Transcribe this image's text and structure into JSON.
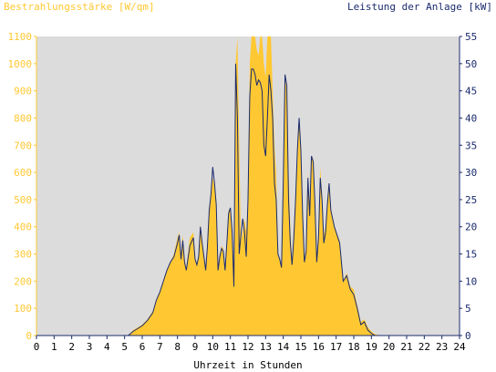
{
  "chart_data": {
    "type": "area",
    "ylabel_left": "Bestrahlungsstärke [W/qm]",
    "ylabel_right": "Leistung der Anlage [kW]",
    "xlabel": "Uhrzeit in Stunden",
    "xlim": [
      0,
      24
    ],
    "ylim_left": [
      0,
      1100
    ],
    "ylim_right": [
      0,
      55
    ],
    "x_ticks": [
      "0",
      "1",
      "2",
      "3",
      "4",
      "5",
      "6",
      "7",
      "8",
      "9",
      "10",
      "11",
      "12",
      "13",
      "14",
      "15",
      "16",
      "17",
      "18",
      "19",
      "20",
      "21",
      "22",
      "23",
      "24"
    ],
    "y_ticks_left": [
      "0",
      "100",
      "200",
      "300",
      "400",
      "500",
      "600",
      "700",
      "800",
      "900",
      "1000",
      "1100"
    ],
    "y_ticks_right": [
      "0",
      "5",
      "10",
      "15",
      "20",
      "25",
      "30",
      "35",
      "40",
      "45",
      "50",
      "55"
    ],
    "grid": false,
    "colors": {
      "background": "#dcdcdc",
      "irradiance_fill": "#ffc832",
      "irradiance_axis": "#ffc832",
      "power_line": "#1a2a6c",
      "power_axis": "#1a2a6c"
    },
    "series": [
      {
        "name": "Bestrahlungsstärke [W/qm]",
        "axis": "left",
        "style": "area",
        "x": [
          5.2,
          5.5,
          6.0,
          6.3,
          6.6,
          6.8,
          7.0,
          7.2,
          7.4,
          7.6,
          7.8,
          8.0,
          8.1,
          8.2,
          8.3,
          8.4,
          8.5,
          8.7,
          8.9,
          9.0,
          9.1,
          9.2,
          9.3,
          9.4,
          9.5,
          9.6,
          9.7,
          9.8,
          9.9,
          10.0,
          10.1,
          10.2,
          10.3,
          10.4,
          10.5,
          10.6,
          10.7,
          10.8,
          10.9,
          11.0,
          11.1,
          11.2,
          11.3,
          11.4,
          11.5,
          11.6,
          11.7,
          11.8,
          11.9,
          12.0,
          12.1,
          12.2,
          12.3,
          12.4,
          12.5,
          12.6,
          12.7,
          12.8,
          12.9,
          13.0,
          13.1,
          13.2,
          13.3,
          13.4,
          13.5,
          13.6,
          13.7,
          13.8,
          13.9,
          14.0,
          14.1,
          14.2,
          14.3,
          14.4,
          14.5,
          14.6,
          14.7,
          14.8,
          14.9,
          15.0,
          15.1,
          15.2,
          15.3,
          15.4,
          15.5,
          15.6,
          15.7,
          15.8,
          15.9,
          16.0,
          16.1,
          16.2,
          16.3,
          16.4,
          16.5,
          16.6,
          16.7,
          16.8,
          16.9,
          17.0,
          17.2,
          17.4,
          17.6,
          17.8,
          18.0,
          18.2,
          18.4,
          18.6,
          18.8,
          19.0,
          19.2,
          19.5,
          19.8
        ],
        "y": [
          0,
          20,
          40,
          60,
          90,
          130,
          160,
          200,
          240,
          270,
          300,
          360,
          380,
          300,
          370,
          280,
          250,
          360,
          380,
          290,
          260,
          300,
          410,
          350,
          300,
          250,
          350,
          470,
          520,
          580,
          550,
          500,
          250,
          300,
          330,
          320,
          250,
          350,
          460,
          470,
          380,
          180,
          1000,
          1100,
          700,
          350,
          380,
          430,
          380,
          500,
          1000,
          1100,
          1100,
          1100,
          1050,
          1030,
          1100,
          1100,
          1000,
          950,
          1100,
          1100,
          1100,
          900,
          700,
          600,
          300,
          280,
          250,
          600,
          950,
          900,
          600,
          400,
          270,
          400,
          530,
          700,
          800,
          700,
          470,
          280,
          330,
          600,
          460,
          650,
          650,
          500,
          280,
          400,
          620,
          510,
          370,
          400,
          500,
          560,
          470,
          430,
          400,
          380,
          350,
          200,
          230,
          180,
          170,
          110,
          50,
          60,
          30,
          15,
          5,
          0,
          0
        ]
      },
      {
        "name": "Leistung der Anlage [kW]",
        "axis": "right",
        "style": "line",
        "x": [
          5.2,
          5.5,
          6.0,
          6.3,
          6.6,
          6.8,
          7.0,
          7.2,
          7.4,
          7.6,
          7.8,
          8.0,
          8.1,
          8.2,
          8.3,
          8.4,
          8.5,
          8.7,
          8.9,
          9.0,
          9.1,
          9.2,
          9.3,
          9.4,
          9.5,
          9.6,
          9.7,
          9.8,
          9.9,
          10.0,
          10.1,
          10.2,
          10.3,
          10.4,
          10.5,
          10.6,
          10.7,
          10.8,
          10.9,
          11.0,
          11.1,
          11.2,
          11.3,
          11.4,
          11.5,
          11.6,
          11.7,
          11.8,
          11.9,
          12.0,
          12.1,
          12.2,
          12.3,
          12.4,
          12.5,
          12.6,
          12.7,
          12.8,
          12.9,
          13.0,
          13.1,
          13.2,
          13.3,
          13.4,
          13.5,
          13.6,
          13.7,
          13.8,
          13.9,
          14.0,
          14.1,
          14.2,
          14.3,
          14.4,
          14.5,
          14.6,
          14.7,
          14.8,
          14.9,
          15.0,
          15.1,
          15.2,
          15.3,
          15.4,
          15.5,
          15.6,
          15.7,
          15.8,
          15.9,
          16.0,
          16.1,
          16.2,
          16.3,
          16.4,
          16.5,
          16.6,
          16.7,
          16.8,
          16.9,
          17.0,
          17.2,
          17.4,
          17.6,
          17.8,
          18.0,
          18.2,
          18.4,
          18.6,
          18.8,
          19.0,
          19.2,
          19.5,
          19.8
        ],
        "y": [
          0,
          0.8,
          1.8,
          2.8,
          4.2,
          6.5,
          8,
          10,
          12,
          13.5,
          14.5,
          17,
          18.5,
          14,
          17.5,
          13.5,
          12,
          16.5,
          18,
          14,
          13,
          14.5,
          20,
          17,
          14.5,
          12,
          16.5,
          23,
          26,
          31,
          28,
          24,
          12,
          14.5,
          16,
          15.5,
          12,
          17,
          22.5,
          23.5,
          19,
          9,
          50,
          40,
          15,
          18.5,
          21.5,
          19,
          14.5,
          25,
          44,
          49,
          49,
          48,
          46,
          47,
          46.5,
          45,
          35,
          33,
          40,
          48,
          45,
          40,
          28,
          25,
          15,
          14,
          12.5,
          28,
          48,
          46,
          25,
          17,
          13,
          18,
          25,
          34,
          40,
          34,
          22,
          13.5,
          15.5,
          29,
          22,
          33,
          32,
          24,
          13.5,
          18,
          29,
          25,
          17,
          19,
          24,
          28,
          23,
          21.5,
          20,
          19,
          17,
          10,
          11,
          8.5,
          7.5,
          5,
          2,
          2.5,
          1,
          0.4,
          0,
          0,
          0
        ]
      }
    ]
  }
}
